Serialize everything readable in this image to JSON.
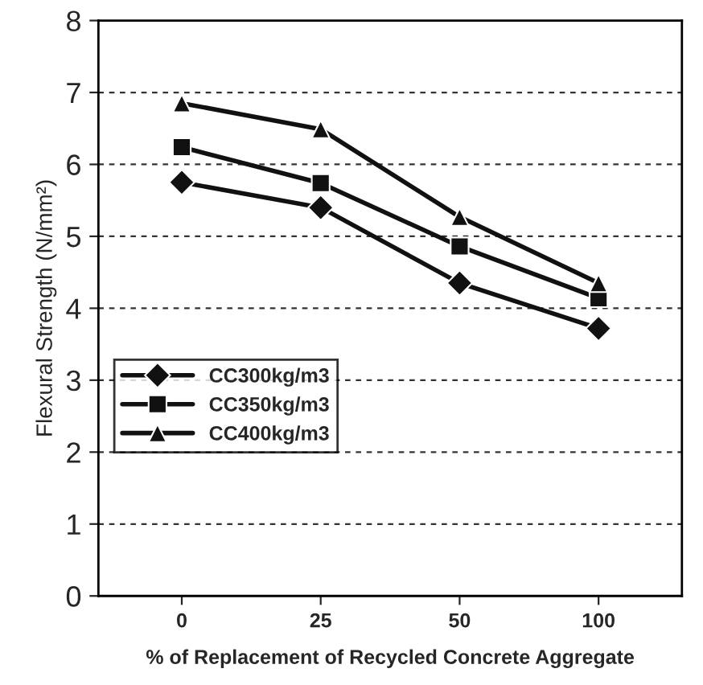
{
  "chart_data": {
    "type": "line",
    "xlabel": "% of Replacement of Recycled Concrete Aggregate",
    "ylabel": "Flexural Strength (N/mm²)",
    "categories": [
      "0",
      "25",
      "50",
      "100"
    ],
    "series": [
      {
        "name": "CC300kg/m3",
        "color": "#111111",
        "marker": "diamond",
        "values": [
          5.75,
          5.4,
          4.35,
          3.72
        ]
      },
      {
        "name": "CC350kg/m3",
        "color": "#111111",
        "marker": "square",
        "values": [
          6.24,
          5.74,
          4.86,
          4.14
        ]
      },
      {
        "name": "CC400kg/m3",
        "color": "#111111",
        "marker": "triangle",
        "values": [
          6.85,
          6.49,
          5.27,
          4.35
        ]
      }
    ],
    "ylim": [
      0,
      8
    ],
    "yticks": [
      0,
      1,
      2,
      3,
      4,
      5,
      6,
      7,
      8
    ],
    "grid": "y",
    "legend": "left",
    "line_style": "solid"
  }
}
